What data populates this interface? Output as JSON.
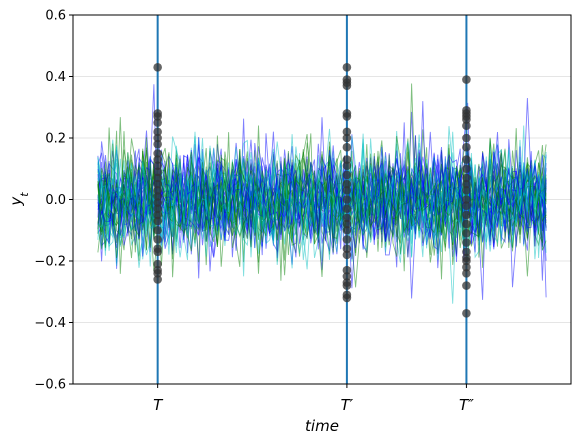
{
  "chart_data": {
    "type": "line",
    "title": "",
    "xlabel": "time",
    "ylabel": "y_t",
    "ylim": [
      -0.6,
      0.6
    ],
    "yticks": [
      -0.6,
      -0.4,
      -0.2,
      0.0,
      0.2,
      0.4,
      0.6
    ],
    "ytick_labels": [
      "−0.6",
      "−0.4",
      "−0.2",
      "0.0",
      "0.2",
      "0.4",
      "0.6"
    ],
    "xlim": [
      0,
      100
    ],
    "x_start": 5,
    "x_end": 95,
    "grid": "horizontal",
    "legend": "none",
    "series_colors": [
      "#0000ff",
      "#008000",
      "#00bfbf"
    ],
    "series_opacity": 0.5,
    "marker_color": "#333333",
    "vline_color": "#1f77b4",
    "vlines": [
      {
        "label": "T",
        "x": 17,
        "points": [
          0.43,
          0.28,
          0.27,
          0.25,
          0.22,
          0.2,
          0.18,
          0.15,
          0.13,
          0.11,
          0.09,
          0.07,
          0.05,
          0.03,
          0.01,
          -0.01,
          -0.03,
          -0.05,
          -0.07,
          -0.1,
          -0.13,
          -0.16,
          -0.17,
          -0.21,
          -0.23,
          -0.24,
          -0.26
        ]
      },
      {
        "label": "T′",
        "x": 55,
        "points": [
          0.43,
          0.39,
          0.38,
          0.37,
          0.28,
          0.27,
          0.22,
          0.2,
          0.17,
          0.13,
          0.11,
          0.08,
          0.05,
          0.03,
          0.0,
          -0.03,
          -0.06,
          -0.08,
          -0.1,
          -0.13,
          -0.16,
          -0.18,
          -0.23,
          -0.25,
          -0.27,
          -0.28,
          -0.31,
          -0.32
        ]
      },
      {
        "label": "T″",
        "x": 79,
        "points": [
          0.39,
          0.29,
          0.28,
          0.27,
          0.26,
          0.24,
          0.2,
          0.17,
          0.13,
          0.1,
          0.07,
          0.05,
          0.03,
          0.0,
          -0.02,
          -0.05,
          -0.08,
          -0.11,
          -0.14,
          -0.17,
          -0.19,
          -0.2,
          -0.22,
          -0.24,
          -0.28,
          -0.37
        ]
      }
    ]
  }
}
